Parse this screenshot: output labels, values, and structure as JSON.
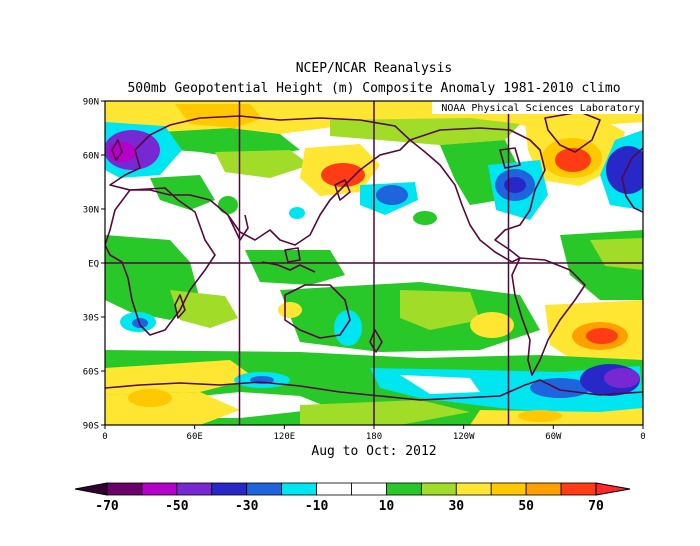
{
  "title": {
    "line1": "NCEP/NCAR Reanalysis",
    "line2": "500mb Geopotential Height (m) Composite Anomaly 1981-2010 climo"
  },
  "credit": "NOAA Physical Sciences Laboratory",
  "period_label": "Aug to Oct: 2012",
  "axes": {
    "lat_ticks": [
      "90N",
      "60N",
      "30N",
      "EQ",
      "30S",
      "60S",
      "90S"
    ],
    "lon_ticks": [
      "0",
      "60E",
      "120E",
      "180",
      "120W",
      "60W",
      "0"
    ]
  },
  "colorbar": {
    "labels": [
      "-70",
      "-50",
      "-30",
      "-10",
      "10",
      "30",
      "50",
      "70"
    ],
    "colors": [
      "#6a006a",
      "#b400c8",
      "#7828d2",
      "#2828c8",
      "#1e64dc",
      "#00e6f0",
      "#ffffff",
      "#ffffff",
      "#28c828",
      "#a0dc28",
      "#ffe632",
      "#ffc800",
      "#ffa000",
      "#ff3c14"
    ],
    "left_arrow_color": "#320032",
    "right_arrow_color": "#ff2828"
  },
  "colors": {
    "land_outline": "#550a3c",
    "grid": "#4a0a3a",
    "frame": "#000000"
  }
}
